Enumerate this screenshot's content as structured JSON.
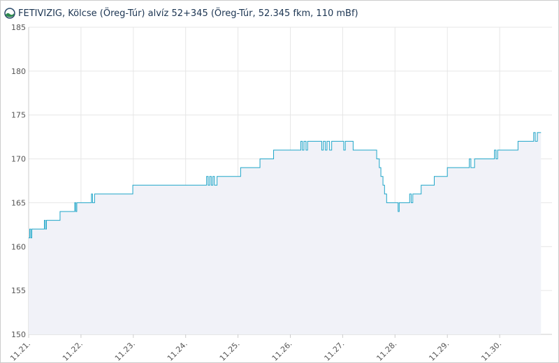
{
  "chart_data": {
    "type": "line",
    "step": true,
    "title": "FETIVIZIG, Kölcse (Öreg-Túr) alvíz 52+345 (Öreg-Túr, 52.345 fkm, 110 mBf)",
    "x": [
      0,
      0.02,
      0.04,
      0.06,
      0.3,
      0.32,
      0.34,
      0.6,
      0.88,
      0.9,
      0.92,
      1.2,
      1.22,
      1.26,
      1.99,
      3.4,
      3.43,
      3.46,
      3.49,
      3.52,
      3.55,
      3.6,
      4.05,
      4.42,
      4.68,
      5.2,
      5.23,
      5.26,
      5.3,
      5.33,
      5.6,
      5.63,
      5.67,
      5.7,
      5.75,
      5.79,
      6.02,
      6.05,
      6.2,
      6.65,
      6.7,
      6.73,
      6.77,
      6.8,
      6.84,
      7.06,
      7.08,
      7.28,
      7.31,
      7.34,
      7.5,
      7.75,
      8.0,
      8.42,
      8.45,
      8.52,
      8.9,
      8.93,
      8.96,
      9.35,
      9.65,
      9.68,
      9.72,
      9.79
    ],
    "series": [
      {
        "color": "#1ea5c8",
        "area_color": "#f1f2f8",
        "values": [
          161,
          162,
          161,
          162,
          163,
          162,
          163,
          164,
          165,
          164,
          165,
          166,
          165,
          166,
          167,
          168,
          167,
          168,
          167,
          168,
          167,
          168,
          169,
          170,
          171,
          172,
          171,
          172,
          171,
          172,
          171,
          172,
          171,
          172,
          171,
          172,
          171,
          172,
          171,
          170,
          169,
          168,
          167,
          166,
          165,
          164,
          165,
          166,
          165,
          166,
          167,
          168,
          169,
          170,
          169,
          170,
          171,
          170,
          171,
          172,
          173,
          172,
          173,
          173
        ]
      }
    ],
    "xlim": [
      0,
      10
    ],
    "xticks": [
      {
        "value": 0,
        "label": "11.21."
      },
      {
        "value": 1,
        "label": "11.22."
      },
      {
        "value": 2,
        "label": "11.23."
      },
      {
        "value": 3,
        "label": "11.24."
      },
      {
        "value": 4,
        "label": "11.25."
      },
      {
        "value": 5,
        "label": "11.26."
      },
      {
        "value": 6,
        "label": "11.27."
      },
      {
        "value": 7,
        "label": "11.28."
      },
      {
        "value": 8,
        "label": "11.29."
      },
      {
        "value": 9,
        "label": "11.30."
      }
    ],
    "ylim": [
      150,
      185
    ],
    "yticks": [
      150,
      155,
      160,
      165,
      170,
      175,
      180,
      185
    ],
    "grid": true
  }
}
